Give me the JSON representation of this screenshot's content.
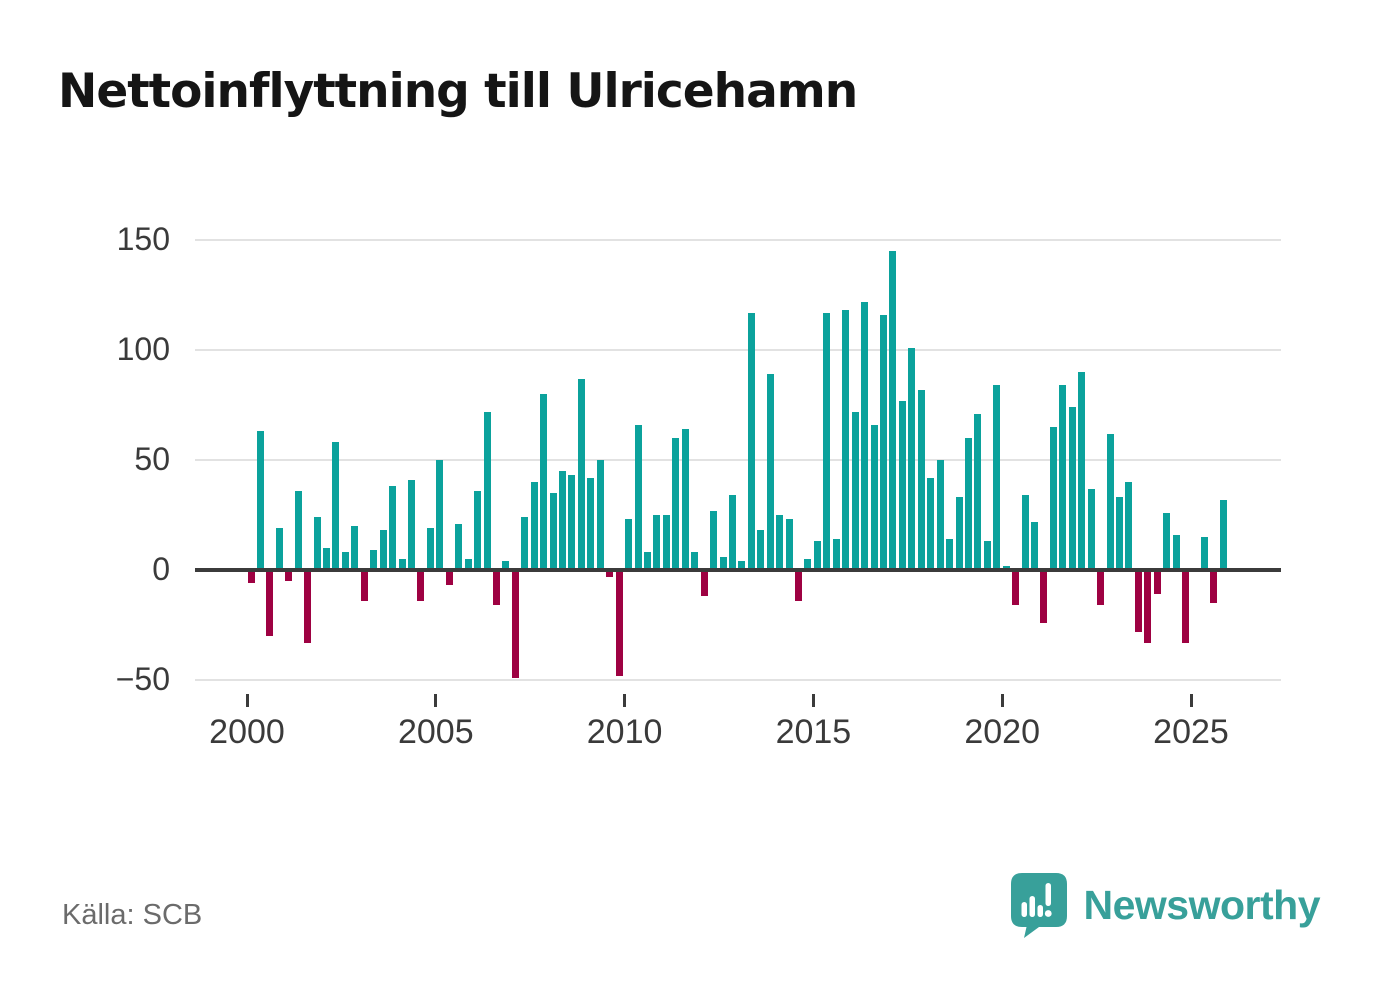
{
  "title": "Nettoinflyttning till Ulricehamn",
  "source": "Källa: SCB",
  "branding": {
    "name": "Newsworthy"
  },
  "colors": {
    "positive": "#0ba29c",
    "negative": "#9e0142",
    "zero_axis": "#3b3b3b",
    "grid": "#e2e2e2",
    "axis_text": "#3a3a3a",
    "title_text": "#151515",
    "source_text": "#6b6b6b",
    "brand": "#38a09a"
  },
  "chart_data": {
    "type": "bar",
    "title": "Nettoinflyttning till Ulricehamn",
    "frequency": "quarterly",
    "period_start": "2000 Q1",
    "period_end": "2025 Q4",
    "grid": "horizontal",
    "legend": "none",
    "x_tick_labels": [
      "2000",
      "2005",
      "2010",
      "2015",
      "2020",
      "2025"
    ],
    "y_ticks": [
      150,
      100,
      50,
      0,
      -50
    ],
    "y_tick_labels": [
      "150",
      "100",
      "50",
      "0",
      "−50"
    ],
    "ylim": [
      -55,
      155
    ],
    "years": [
      "2000",
      "2001",
      "2002",
      "2003",
      "2004",
      "2005",
      "2006",
      "2007",
      "2008",
      "2009",
      "2010",
      "2011",
      "2012",
      "2013",
      "2014",
      "2015",
      "2016",
      "2017",
      "2018",
      "2019",
      "2020",
      "2021",
      "2022",
      "2023",
      "2024",
      "2025"
    ],
    "values_by_year": {
      "2000": [
        -6,
        63,
        -30,
        19
      ],
      "2001": [
        -5,
        36,
        -33,
        24
      ],
      "2002": [
        10,
        58,
        8,
        20
      ],
      "2003": [
        -14,
        9,
        18,
        38
      ],
      "2004": [
        5,
        41,
        -14,
        19
      ],
      "2005": [
        50,
        -7,
        21,
        5
      ],
      "2006": [
        36,
        72,
        -16,
        4
      ],
      "2007": [
        -49,
        24,
        40,
        80
      ],
      "2008": [
        35,
        45,
        43,
        87
      ],
      "2009": [
        42,
        50,
        -3,
        -48
      ],
      "2010": [
        23,
        66,
        8,
        25
      ],
      "2011": [
        25,
        60,
        64,
        8
      ],
      "2012": [
        -12,
        27,
        6,
        34
      ],
      "2013": [
        4,
        117,
        18,
        89
      ],
      "2014": [
        25,
        23,
        -14,
        5
      ],
      "2015": [
        13,
        117,
        14,
        118
      ],
      "2016": [
        72,
        122,
        66,
        116
      ],
      "2017": [
        145,
        77,
        101,
        82
      ],
      "2018": [
        42,
        50,
        14,
        33
      ],
      "2019": [
        60,
        71,
        13,
        84
      ],
      "2020": [
        2,
        -16,
        34,
        22
      ],
      "2021": [
        -24,
        65,
        84,
        74
      ],
      "2022": [
        90,
        37,
        -16,
        62
      ],
      "2023": [
        33,
        40,
        -28,
        -33
      ],
      "2024": [
        -11,
        26,
        16,
        -33
      ],
      "2025": [
        0,
        15,
        -15,
        32
      ]
    }
  }
}
